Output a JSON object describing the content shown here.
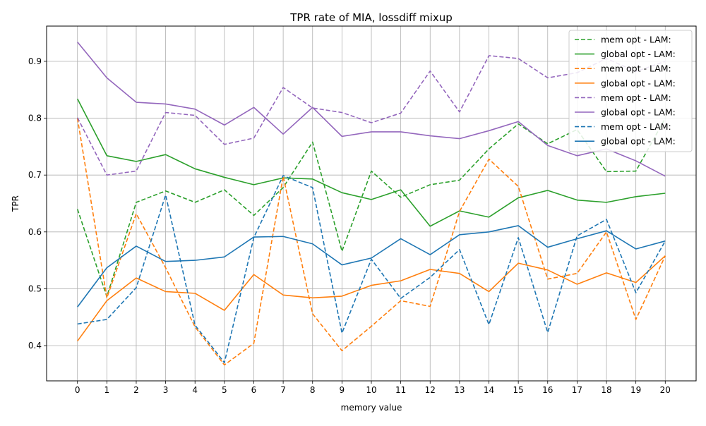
{
  "chart_data": {
    "type": "line",
    "title": "TPR rate of MIA, lossdiff mixup",
    "xlabel": "memory value",
    "ylabel": "TPR",
    "x": [
      0,
      1,
      2,
      3,
      4,
      5,
      6,
      7,
      8,
      9,
      10,
      11,
      12,
      13,
      14,
      15,
      16,
      17,
      18,
      19,
      20
    ],
    "xlim": [
      -1.05,
      21.05
    ],
    "ylim": [
      0.338,
      0.962
    ],
    "yticks": [
      0.4,
      0.5,
      0.6,
      0.7,
      0.8,
      0.9
    ],
    "grid": true,
    "legend_position": "top-right",
    "series": [
      {
        "name": "mem opt - LAM:",
        "color": "#2ca02c",
        "dash": true,
        "values": [
          0.64,
          0.486,
          0.652,
          0.672,
          0.652,
          0.674,
          0.629,
          0.678,
          0.758,
          0.566,
          0.707,
          0.661,
          0.683,
          0.691,
          0.746,
          0.79,
          0.755,
          0.78,
          0.706,
          0.707,
          0.8
        ]
      },
      {
        "name": "global opt - LAM:",
        "color": "#2ca02c",
        "dash": false,
        "values": [
          0.834,
          0.734,
          0.724,
          0.736,
          0.711,
          0.696,
          0.683,
          0.695,
          0.693,
          0.669,
          0.657,
          0.674,
          0.61,
          0.637,
          0.626,
          0.66,
          0.673,
          0.656,
          0.652,
          0.662,
          0.668
        ]
      },
      {
        "name": "mem opt - LAM:",
        "color": "#ff7f0e",
        "dash": true,
        "values": [
          0.8,
          0.484,
          0.632,
          0.537,
          0.433,
          0.366,
          0.404,
          0.698,
          0.456,
          0.391,
          0.434,
          0.479,
          0.469,
          0.636,
          0.728,
          0.68,
          0.517,
          0.527,
          0.6,
          0.446,
          0.558
        ]
      },
      {
        "name": "global opt - LAM:",
        "color": "#ff7f0e",
        "dash": false,
        "values": [
          0.408,
          0.479,
          0.519,
          0.495,
          0.492,
          0.462,
          0.525,
          0.489,
          0.484,
          0.487,
          0.506,
          0.514,
          0.534,
          0.527,
          0.495,
          0.545,
          0.533,
          0.508,
          0.528,
          0.511,
          0.558
        ]
      },
      {
        "name": "mem opt - LAM:",
        "color": "#9467bd",
        "dash": true,
        "values": [
          0.801,
          0.7,
          0.707,
          0.81,
          0.805,
          0.754,
          0.765,
          0.854,
          0.818,
          0.81,
          0.792,
          0.809,
          0.883,
          0.811,
          0.91,
          0.905,
          0.871,
          0.88,
          0.905,
          0.882,
          0.9
        ]
      },
      {
        "name": "global opt - LAM:",
        "color": "#9467bd",
        "dash": false,
        "values": [
          0.934,
          0.871,
          0.828,
          0.825,
          0.816,
          0.788,
          0.819,
          0.772,
          0.819,
          0.768,
          0.776,
          0.776,
          0.769,
          0.764,
          0.778,
          0.794,
          0.752,
          0.734,
          0.746,
          0.725,
          0.698
        ]
      },
      {
        "name": "mem opt - LAM:",
        "color": "#1f77b4",
        "dash": true,
        "values": [
          0.438,
          0.446,
          0.502,
          0.665,
          0.436,
          0.37,
          0.59,
          0.699,
          0.678,
          0.422,
          0.552,
          0.483,
          0.52,
          0.569,
          0.437,
          0.59,
          0.423,
          0.593,
          0.622,
          0.493,
          0.584
        ]
      },
      {
        "name": "global opt - LAM:",
        "color": "#1f77b4",
        "dash": false,
        "values": [
          0.468,
          0.537,
          0.575,
          0.548,
          0.55,
          0.556,
          0.591,
          0.592,
          0.579,
          0.542,
          0.554,
          0.588,
          0.56,
          0.595,
          0.6,
          0.611,
          0.573,
          0.588,
          0.602,
          0.57,
          0.584
        ]
      }
    ]
  }
}
